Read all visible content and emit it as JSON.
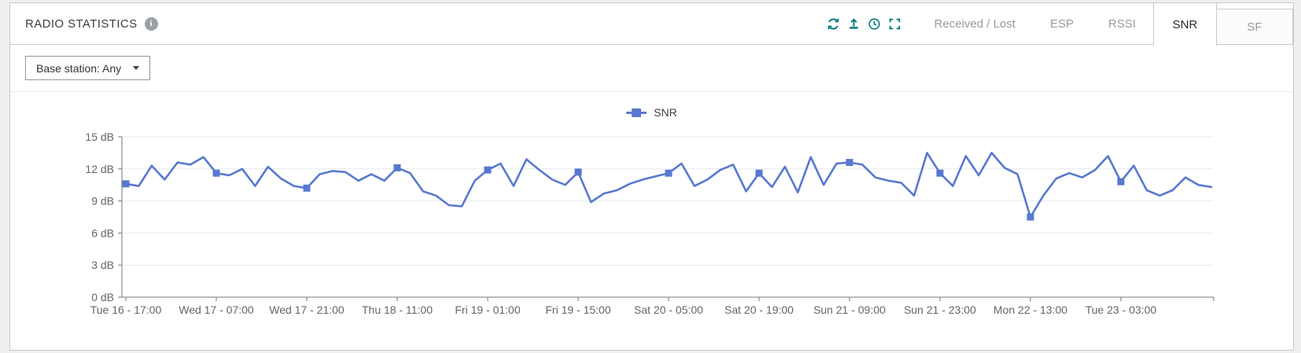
{
  "panel": {
    "title": "RADIO STATISTICS",
    "info_glyph": "i"
  },
  "toolbar": {
    "icon_color": "#0d7e7d",
    "icons": [
      "refresh",
      "export",
      "time-range",
      "fullscreen"
    ]
  },
  "tabs": [
    {
      "label": "Received / Lost",
      "active": false
    },
    {
      "label": "ESP",
      "active": false
    },
    {
      "label": "RSSI",
      "active": false
    },
    {
      "label": "SNR",
      "active": true
    },
    {
      "label": "SF",
      "active": false
    }
  ],
  "filter": {
    "base_station_label": "Base station: Any"
  },
  "chart_data": {
    "type": "line",
    "color": "#5878d0",
    "grid": true,
    "legend_position": "top-center",
    "ylim": [
      0,
      15
    ],
    "y_ticks": [
      "0 dB",
      "3 dB",
      "6 dB",
      "9 dB",
      "12 dB",
      "15 dB"
    ],
    "x_tick_labels": [
      "Tue 16 - 17:00",
      "Wed 17 - 07:00",
      "Wed 17 - 21:00",
      "Thu 18 - 11:00",
      "Fri 19 - 01:00",
      "Fri 19 - 15:00",
      "Sat 20 - 05:00",
      "Sat 20 - 19:00",
      "Sun 21 - 09:00",
      "Sun 21 - 23:00",
      "Mon 22 - 13:00",
      "Tue 23 - 03:00"
    ],
    "x_points_per_tick": 7,
    "x_step_hours": 2,
    "series": [
      {
        "name": "SNR",
        "unit": "dB",
        "marker_indices": [
          0,
          7,
          14,
          21,
          28,
          35,
          42,
          49,
          56,
          63,
          70,
          77
        ],
        "values": [
          10.6,
          10.4,
          12.3,
          11.0,
          12.6,
          12.4,
          13.1,
          11.6,
          11.4,
          12.0,
          10.4,
          12.2,
          11.1,
          10.4,
          10.2,
          11.5,
          11.8,
          11.7,
          10.9,
          11.5,
          10.9,
          12.1,
          11.6,
          9.9,
          9.5,
          8.6,
          8.5,
          10.9,
          11.9,
          12.5,
          10.4,
          12.9,
          11.9,
          11.0,
          10.5,
          11.7,
          8.9,
          9.7,
          10.0,
          10.6,
          11.0,
          11.3,
          11.6,
          12.5,
          10.4,
          11.0,
          11.9,
          12.4,
          9.9,
          11.6,
          10.3,
          12.2,
          9.8,
          13.1,
          10.5,
          12.5,
          12.6,
          12.4,
          11.2,
          10.9,
          10.7,
          9.5,
          13.5,
          11.6,
          10.4,
          13.2,
          11.4,
          13.5,
          12.1,
          11.5,
          7.5,
          9.5,
          11.1,
          11.6,
          11.2,
          11.9,
          13.2,
          10.8,
          12.3,
          10.0,
          9.5,
          10.0,
          11.2,
          10.5,
          10.3
        ]
      }
    ]
  }
}
